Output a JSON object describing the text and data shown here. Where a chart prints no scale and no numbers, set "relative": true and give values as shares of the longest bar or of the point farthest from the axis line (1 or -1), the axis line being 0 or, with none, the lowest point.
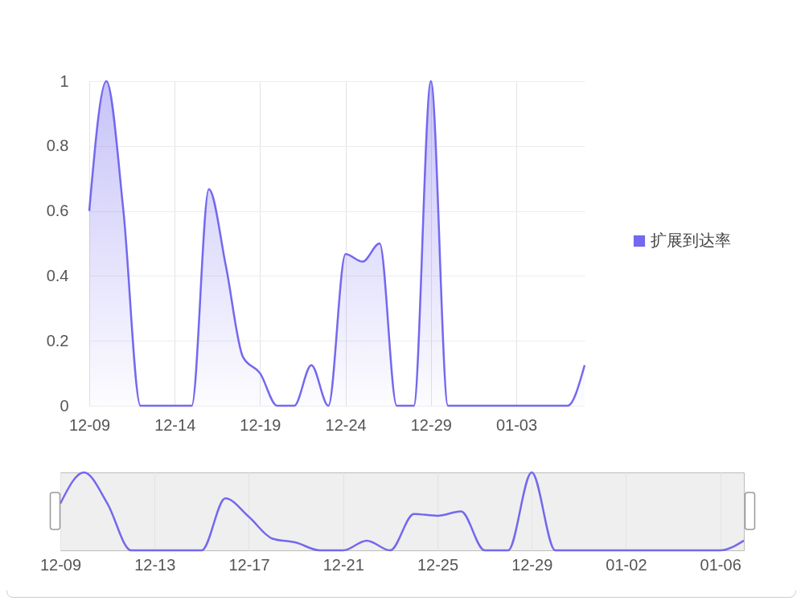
{
  "chart_data": [
    {
      "type": "area",
      "categories": [
        "12-09",
        null,
        null,
        null,
        null,
        "12-14",
        null,
        null,
        null,
        null,
        "12-19",
        null,
        null,
        null,
        null,
        "12-24",
        null,
        null,
        null,
        null,
        "12-29",
        null,
        null,
        null,
        null,
        "01-03",
        null,
        null,
        null,
        null
      ],
      "series": [
        {
          "name": "扩展到达率",
          "color": "#7468ee",
          "values": [
            0.6,
            1,
            0.6,
            0,
            0,
            0,
            0,
            0.667,
            0.43,
            0.15,
            0.1,
            0,
            0,
            0.125,
            0,
            0.467,
            0.444,
            0.5,
            0,
            0,
            1,
            0,
            0,
            0,
            0,
            0,
            0,
            0,
            0,
            0.125
          ]
        }
      ],
      "ylim": [
        0,
        1
      ],
      "yticks": [
        0,
        0.2,
        0.4,
        0.6,
        0.8,
        1
      ],
      "grid": true,
      "legend": "right"
    },
    {
      "type": "line",
      "relative": true,
      "categories": [
        "12-09",
        null,
        null,
        null,
        "12-13",
        null,
        null,
        null,
        "12-17",
        null,
        null,
        null,
        "12-21",
        null,
        null,
        null,
        "12-25",
        null,
        null,
        null,
        "12-29",
        null,
        null,
        null,
        "01-02",
        null,
        null,
        null,
        "01-06",
        null
      ],
      "series": [
        {
          "color": "#7468ee",
          "values": [
            0.6,
            1,
            0.6,
            0,
            0,
            0,
            0,
            0.667,
            0.43,
            0.15,
            0.1,
            0,
            0,
            0.125,
            0,
            0.467,
            0.444,
            0.5,
            0,
            0,
            1,
            0,
            0,
            0,
            0,
            0,
            0,
            0,
            0,
            0.125
          ]
        }
      ],
      "grid": "x"
    }
  ]
}
